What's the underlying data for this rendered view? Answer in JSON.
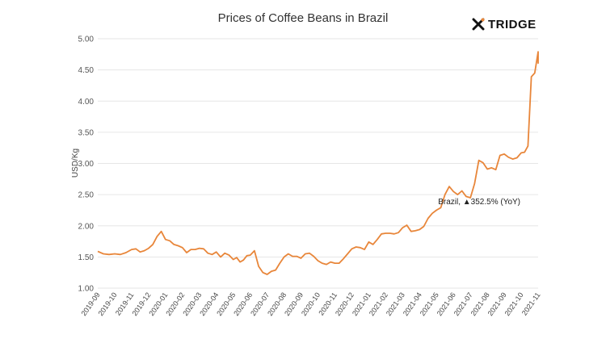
{
  "logo": {
    "text": "TRIDGE",
    "icon": "tridge-cross-icon"
  },
  "chart_data": {
    "type": "line",
    "title": "Prices of Coffee Beans in Brazil",
    "xlabel": "",
    "ylabel": "USD/Kg",
    "ylim": [
      1.0,
      5.0
    ],
    "yticks": [
      1.0,
      1.5,
      2.0,
      2.5,
      3.0,
      3.5,
      4.0,
      4.5,
      5.0
    ],
    "ytick_labels": [
      "1.00",
      "1.50",
      "2.00",
      "2.50",
      "3.00",
      "3.50",
      "4.00",
      "4.50",
      "5.00"
    ],
    "xtick_labels": [
      "2019-09",
      "2019-10",
      "2019-11",
      "2019-12",
      "2020-01",
      "2020-02",
      "2020-03",
      "2020-04",
      "2020-05",
      "2020-06",
      "2020-07",
      "2020-08",
      "2020-09",
      "2020-10",
      "2020-11",
      "2020-12",
      "2021-01",
      "2021-02",
      "2021-03",
      "2021-04",
      "2021-05",
      "2021-06",
      "2021-07",
      "2021-08",
      "2021-09",
      "2021-10",
      "2021-11"
    ],
    "grid": true,
    "line_color": "#e8863a",
    "series": [
      {
        "name": "Brazil",
        "points": [
          [
            "2019-09",
            1.59
          ],
          [
            "2019-09",
            1.55
          ],
          [
            "2019-09",
            1.54
          ],
          [
            "2019-10",
            1.55
          ],
          [
            "2019-10",
            1.54
          ],
          [
            "2019-10",
            1.57
          ],
          [
            "2019-11",
            1.62
          ],
          [
            "2019-11",
            1.63
          ],
          [
            "2019-11",
            1.58
          ],
          [
            "2019-11",
            1.6
          ],
          [
            "2019-12",
            1.64
          ],
          [
            "2019-12",
            1.7
          ],
          [
            "2019-12",
            1.83
          ],
          [
            "2019-12",
            1.91
          ],
          [
            "2020-01",
            1.78
          ],
          [
            "2020-01",
            1.76
          ],
          [
            "2020-01",
            1.7
          ],
          [
            "2020-01",
            1.68
          ],
          [
            "2020-02",
            1.65
          ],
          [
            "2020-02",
            1.57
          ],
          [
            "2020-02",
            1.62
          ],
          [
            "2020-02",
            1.62
          ],
          [
            "2020-03",
            1.64
          ],
          [
            "2020-03",
            1.63
          ],
          [
            "2020-03",
            1.56
          ],
          [
            "2020-03",
            1.54
          ],
          [
            "2020-04",
            1.58
          ],
          [
            "2020-04",
            1.5
          ],
          [
            "2020-04",
            1.56
          ],
          [
            "2020-04",
            1.53
          ],
          [
            "2020-05",
            1.46
          ],
          [
            "2020-05",
            1.49
          ],
          [
            "2020-05",
            1.42
          ],
          [
            "2020-05",
            1.45
          ],
          [
            "2020-05",
            1.52
          ],
          [
            "2020-06",
            1.53
          ],
          [
            "2020-06",
            1.6
          ],
          [
            "2020-06",
            1.35
          ],
          [
            "2020-06",
            1.25
          ],
          [
            "2020-07",
            1.22
          ],
          [
            "2020-07",
            1.27
          ],
          [
            "2020-07",
            1.29
          ],
          [
            "2020-07",
            1.4
          ],
          [
            "2020-08",
            1.5
          ],
          [
            "2020-08",
            1.55
          ],
          [
            "2020-08",
            1.51
          ],
          [
            "2020-08",
            1.51
          ],
          [
            "2020-09",
            1.48
          ],
          [
            "2020-09",
            1.55
          ],
          [
            "2020-09",
            1.56
          ],
          [
            "2020-09",
            1.51
          ],
          [
            "2020-10",
            1.44
          ],
          [
            "2020-10",
            1.4
          ],
          [
            "2020-10",
            1.38
          ],
          [
            "2020-10",
            1.42
          ],
          [
            "2020-11",
            1.4
          ],
          [
            "2020-11",
            1.4
          ],
          [
            "2020-11",
            1.47
          ],
          [
            "2020-11",
            1.55
          ],
          [
            "2020-12",
            1.63
          ],
          [
            "2020-12",
            1.66
          ],
          [
            "2020-12",
            1.65
          ],
          [
            "2020-12",
            1.62
          ],
          [
            "2021-01",
            1.74
          ],
          [
            "2021-01",
            1.7
          ],
          [
            "2021-01",
            1.78
          ],
          [
            "2021-01",
            1.87
          ],
          [
            "2021-02",
            1.88
          ],
          [
            "2021-02",
            1.88
          ],
          [
            "2021-02",
            1.87
          ],
          [
            "2021-02",
            1.89
          ],
          [
            "2021-03",
            1.97
          ],
          [
            "2021-03",
            2.01
          ],
          [
            "2021-03",
            1.91
          ],
          [
            "2021-03",
            1.92
          ],
          [
            "2021-04",
            1.94
          ],
          [
            "2021-04",
            1.99
          ],
          [
            "2021-04",
            2.12
          ],
          [
            "2021-04",
            2.2
          ],
          [
            "2021-05",
            2.25
          ],
          [
            "2021-05",
            2.29
          ],
          [
            "2021-05",
            2.5
          ],
          [
            "2021-05",
            2.63
          ],
          [
            "2021-06",
            2.55
          ],
          [
            "2021-06",
            2.5
          ],
          [
            "2021-06",
            2.56
          ],
          [
            "2021-06",
            2.47
          ],
          [
            "2021-07",
            2.45
          ],
          [
            "2021-07",
            2.68
          ],
          [
            "2021-07",
            3.05
          ],
          [
            "2021-07",
            3.01
          ],
          [
            "2021-08",
            2.91
          ],
          [
            "2021-08",
            2.93
          ],
          [
            "2021-08",
            2.9
          ],
          [
            "2021-08",
            3.13
          ],
          [
            "2021-09",
            3.15
          ],
          [
            "2021-09",
            3.1
          ],
          [
            "2021-09",
            3.07
          ],
          [
            "2021-09",
            3.09
          ],
          [
            "2021-10",
            3.17
          ],
          [
            "2021-10",
            3.18
          ],
          [
            "2021-10",
            3.28
          ],
          [
            "2021-10",
            4.39
          ],
          [
            "2021-10",
            4.45
          ],
          [
            "2021-11",
            4.79
          ],
          [
            "2021-11",
            4.6
          ]
        ]
      }
    ],
    "annotation": {
      "label": "Brazil, ▲352.5% (YoY)",
      "anchor_date": "2021-05",
      "anchor_value": 2.32
    }
  }
}
